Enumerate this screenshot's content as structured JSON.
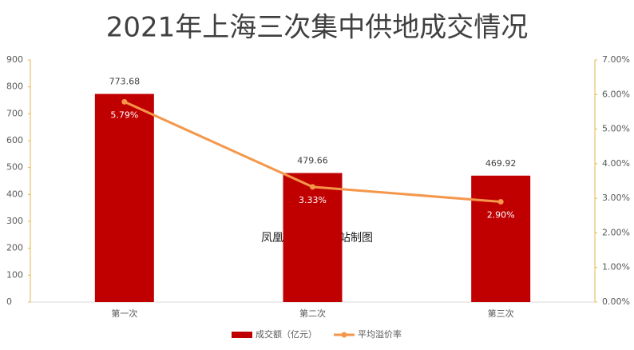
{
  "chart_data": {
    "type": "bar",
    "title": "2021年上海三次集中供地成交情况",
    "annotation": "凤凰网房产上海站制图",
    "categories": [
      "第一次",
      "第二次",
      "第三次"
    ],
    "series": [
      {
        "name": "成交额（亿元）",
        "type": "bar",
        "color": "#c00000",
        "values": [
          773.68,
          479.66,
          469.92
        ]
      },
      {
        "name": "平均溢价率",
        "type": "line",
        "color": "#f4974a",
        "axis": "y2",
        "values": [
          5.79,
          3.33,
          2.9
        ],
        "value_labels": [
          "5.79%",
          "3.33%",
          "2.90%"
        ]
      }
    ],
    "ylim": [
      0,
      900
    ],
    "yticks": [
      0,
      100,
      200,
      300,
      400,
      500,
      600,
      700,
      800,
      900
    ],
    "y2lim": [
      0,
      7
    ],
    "y2ticks": [
      {
        "value": 0,
        "label": "0.00%"
      },
      {
        "value": 1,
        "label": "1.00%"
      },
      {
        "value": 2,
        "label": "2.00%"
      },
      {
        "value": 3,
        "label": "3.00%"
      },
      {
        "value": 4,
        "label": "4.00%"
      },
      {
        "value": 5,
        "label": "5.00%"
      },
      {
        "value": 6,
        "label": "6.00%"
      },
      {
        "value": 7,
        "label": "7.00%"
      }
    ],
    "legend": "bottom",
    "grid": false
  }
}
